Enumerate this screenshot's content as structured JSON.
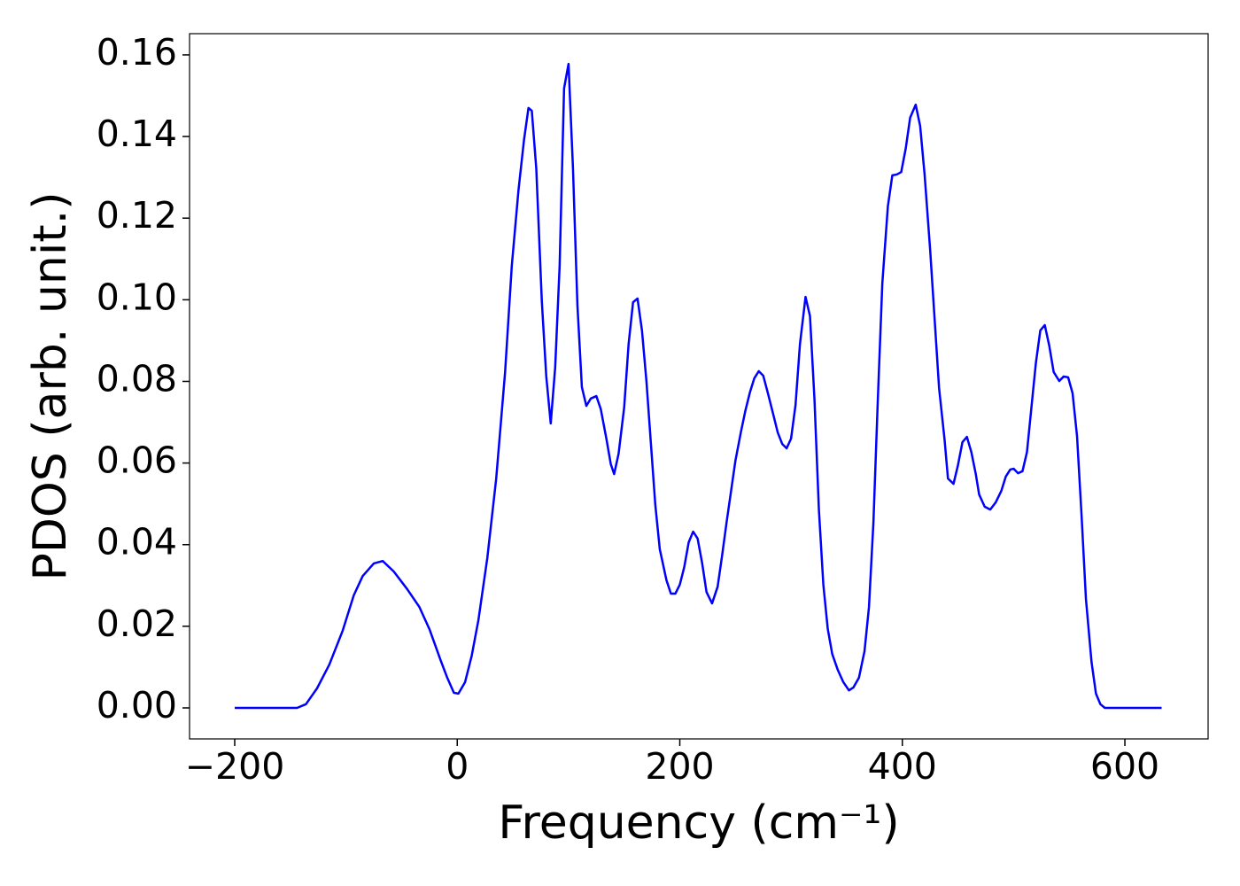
{
  "chart_data": {
    "type": "line",
    "xlabel": "Frequency (cm⁻¹)",
    "ylabel": "PDOS (arb. unit.)",
    "color": "#0000ff",
    "xlim": [
      -240.6,
      674.8
    ],
    "ylim": [
      -0.0076,
      0.1652
    ],
    "xticks": [
      {
        "value": -200,
        "label": "−200"
      },
      0,
      200,
      400,
      600
    ],
    "yticks": [
      {
        "value": 0,
        "label": "0.00"
      },
      0.02,
      0.04,
      0.06,
      0.08,
      {
        "value": 0.1,
        "label": "0.10"
      },
      0.12,
      0.14,
      0.16
    ],
    "x": [
      -200,
      -144,
      -136,
      -126,
      -115,
      -103,
      -93,
      -85,
      -75,
      -67,
      -57,
      -45,
      -34,
      -25,
      -15,
      -9,
      -3,
      1,
      7,
      13,
      19,
      27,
      35,
      43,
      49,
      55,
      60,
      64,
      67,
      71,
      76,
      80,
      84,
      88,
      92,
      96,
      100,
      104,
      108,
      112,
      116,
      120,
      125,
      129,
      134,
      138,
      141,
      145,
      150,
      154,
      158,
      162,
      166,
      170,
      174,
      178,
      182,
      188,
      192,
      196,
      200,
      204,
      208,
      212,
      216,
      220,
      224,
      229,
      234,
      238,
      242,
      246,
      250,
      255,
      259,
      263,
      267,
      271,
      275,
      279,
      284,
      288,
      292,
      296,
      300,
      304,
      308,
      313,
      317,
      321,
      325,
      329,
      333,
      337,
      342,
      347,
      352,
      356,
      361,
      366,
      370,
      374,
      378,
      382,
      387,
      391,
      395,
      399,
      403,
      407,
      412,
      416,
      420,
      425,
      429,
      433,
      438,
      441,
      446,
      450,
      454,
      458,
      462,
      466,
      469,
      474,
      479,
      484,
      489,
      493,
      497,
      500,
      504,
      508,
      512,
      516,
      520,
      524,
      528,
      532,
      536,
      541,
      545,
      549,
      553,
      557,
      561,
      565,
      570,
      574,
      578,
      582,
      633
    ],
    "values": [
      0,
      0,
      0.0009,
      0.0048,
      0.0106,
      0.0189,
      0.0276,
      0.0323,
      0.0354,
      0.036,
      0.0334,
      0.0291,
      0.0247,
      0.0193,
      0.0117,
      0.0074,
      0.0037,
      0.0035,
      0.0063,
      0.0128,
      0.0215,
      0.0367,
      0.0562,
      0.0823,
      0.1083,
      0.1268,
      0.1392,
      0.147,
      0.1463,
      0.1322,
      0.0996,
      0.0812,
      0.0697,
      0.0834,
      0.1083,
      0.1518,
      0.1578,
      0.1322,
      0.0986,
      0.0786,
      0.074,
      0.0758,
      0.0764,
      0.0732,
      0.066,
      0.0597,
      0.0573,
      0.0623,
      0.0736,
      0.0892,
      0.0994,
      0.1003,
      0.0925,
      0.0801,
      0.0649,
      0.0497,
      0.0389,
      0.0313,
      0.028,
      0.028,
      0.0302,
      0.0345,
      0.0406,
      0.0432,
      0.0415,
      0.0356,
      0.0284,
      0.0256,
      0.0297,
      0.0373,
      0.0454,
      0.053,
      0.0606,
      0.0677,
      0.0729,
      0.0773,
      0.0808,
      0.0825,
      0.0814,
      0.0773,
      0.0719,
      0.0675,
      0.0647,
      0.0636,
      0.066,
      0.0742,
      0.0892,
      0.1007,
      0.096,
      0.0758,
      0.0486,
      0.0302,
      0.0193,
      0.0132,
      0.0093,
      0.0063,
      0.0043,
      0.005,
      0.0074,
      0.0139,
      0.0247,
      0.0454,
      0.0758,
      0.104,
      0.1229,
      0.1305,
      0.1307,
      0.1313,
      0.137,
      0.1446,
      0.1478,
      0.1426,
      0.1307,
      0.1122,
      0.0953,
      0.0784,
      0.0656,
      0.0562,
      0.0549,
      0.0595,
      0.0651,
      0.0664,
      0.0627,
      0.0573,
      0.0523,
      0.0493,
      0.0486,
      0.0504,
      0.0532,
      0.0567,
      0.0584,
      0.0586,
      0.0575,
      0.058,
      0.0627,
      0.0736,
      0.0845,
      0.0925,
      0.0938,
      0.0888,
      0.0823,
      0.0801,
      0.0812,
      0.081,
      0.0771,
      0.0666,
      0.0475,
      0.0267,
      0.0113,
      0.0035,
      0.0009,
      0,
      0
    ]
  }
}
